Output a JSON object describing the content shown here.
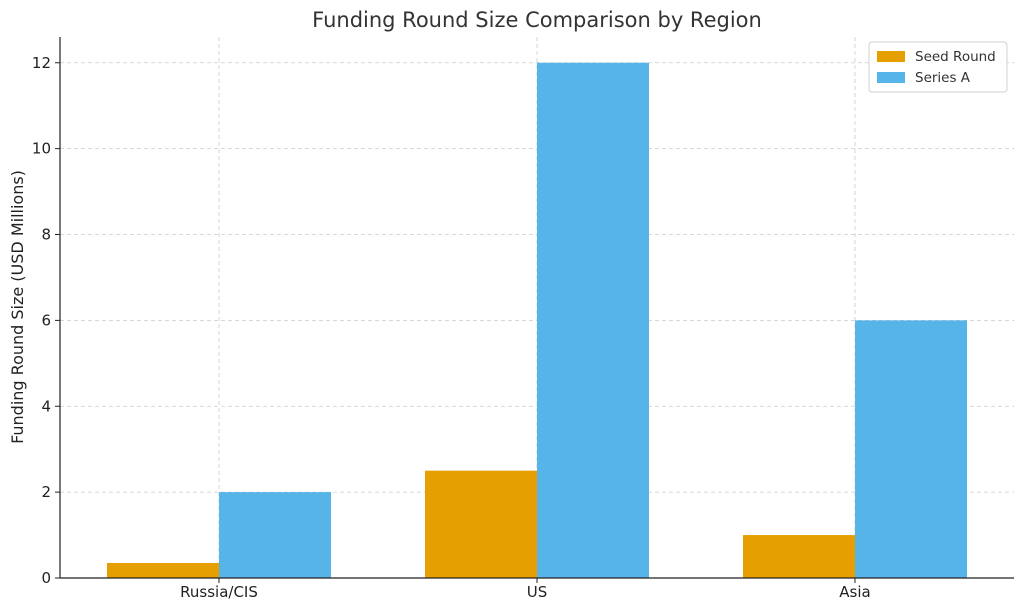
{
  "chart_data": {
    "type": "bar",
    "title": "Funding Round Size Comparison by Region",
    "xlabel": "",
    "ylabel": "Funding Round Size (USD Millions)",
    "categories": [
      "Russia/CIS",
      "US",
      "Asia"
    ],
    "series": [
      {
        "name": "Seed Round",
        "values": [
          0.35,
          2.5,
          1.0
        ],
        "color": "#E69F00"
      },
      {
        "name": "Series A",
        "values": [
          2.0,
          12.0,
          6.0
        ],
        "color": "#56B4E9"
      }
    ],
    "ylim": [
      0,
      12.6
    ],
    "yticks": [
      "0",
      "2",
      "4",
      "6",
      "8",
      "10",
      "12"
    ],
    "grid": true,
    "legend_position": "top-right"
  }
}
